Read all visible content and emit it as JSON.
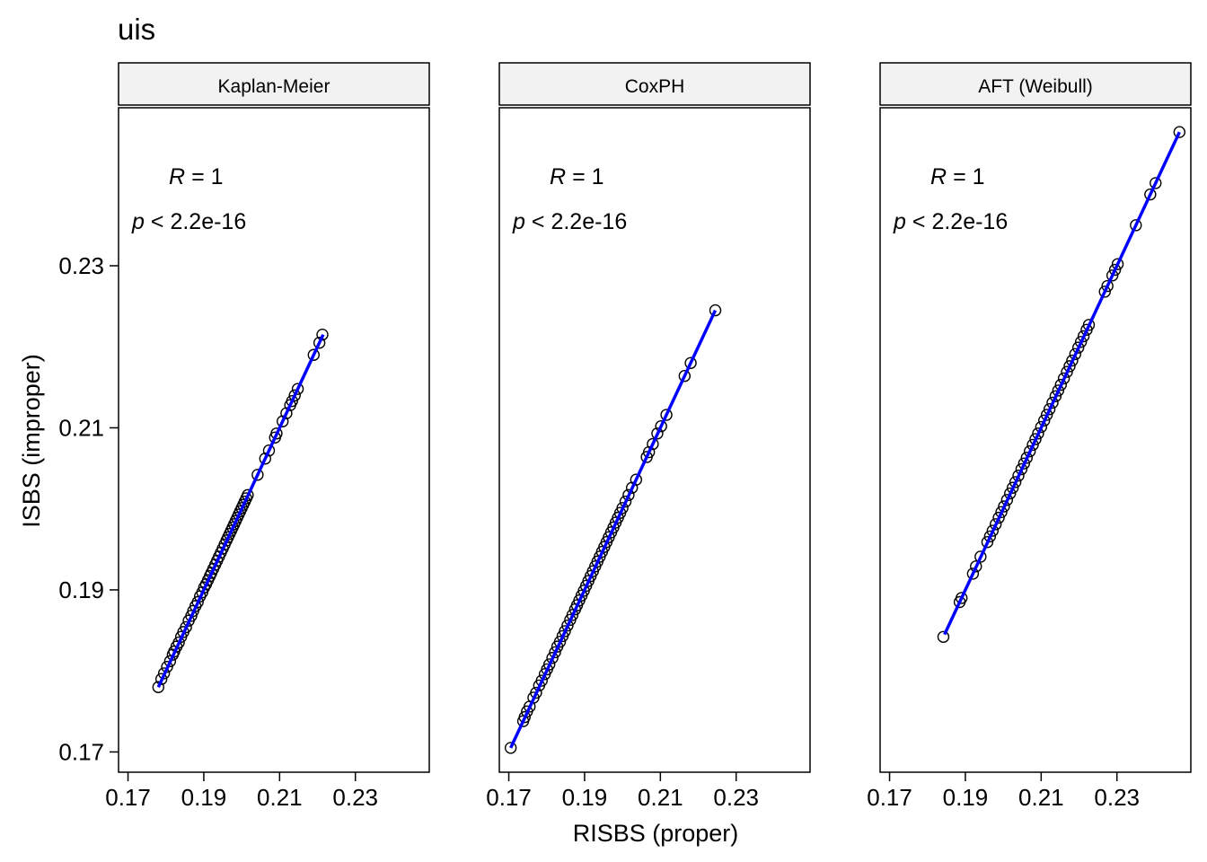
{
  "chart_data": {
    "type": "scatter",
    "title": "uis",
    "xlabel": "RISBS (proper)",
    "ylabel": "ISBS (improper)",
    "xlim": [
      0.1675,
      0.2495
    ],
    "ylim": [
      0.1675,
      0.2495
    ],
    "xticks": [
      0.17,
      0.19,
      0.21,
      0.23
    ],
    "yticks": [
      0.17,
      0.19,
      0.21,
      0.23
    ],
    "xtick_labels": [
      "0.17",
      "0.19",
      "0.21",
      "0.23"
    ],
    "ytick_labels": [
      "0.17",
      "0.19",
      "0.21",
      "0.23"
    ],
    "grid": false,
    "point_color": "#000000",
    "fit_line_color": "#0000ff",
    "strip_fill": "#f2f2f2",
    "panels": [
      {
        "strip_label": "Kaplan-Meier",
        "r_label": "R",
        "r_value": "= 1",
        "p_label": "p",
        "p_value": "< 2.2e-16",
        "fit_line": [
          [
            0.178,
            0.178
          ],
          [
            0.2215,
            0.2215
          ]
        ],
        "points": [
          [
            0.178,
            0.178
          ],
          [
            0.1788,
            0.179
          ],
          [
            0.1795,
            0.1797
          ],
          [
            0.1803,
            0.1805
          ],
          [
            0.1811,
            0.1812
          ],
          [
            0.1818,
            0.182
          ],
          [
            0.1822,
            0.1824
          ],
          [
            0.1828,
            0.183
          ],
          [
            0.1834,
            0.1835
          ],
          [
            0.184,
            0.1842
          ],
          [
            0.1846,
            0.1848
          ],
          [
            0.1853,
            0.1854
          ],
          [
            0.186,
            0.1862
          ],
          [
            0.1867,
            0.1868
          ],
          [
            0.1872,
            0.1874
          ],
          [
            0.1878,
            0.188
          ],
          [
            0.1884,
            0.1885
          ],
          [
            0.189,
            0.1892
          ],
          [
            0.1896,
            0.1897
          ],
          [
            0.1901,
            0.1903
          ],
          [
            0.1906,
            0.1907
          ],
          [
            0.1911,
            0.1912
          ],
          [
            0.1916,
            0.1917
          ],
          [
            0.192,
            0.1921
          ],
          [
            0.1925,
            0.1926
          ],
          [
            0.193,
            0.1931
          ],
          [
            0.1935,
            0.1936
          ],
          [
            0.194,
            0.1941
          ],
          [
            0.1945,
            0.1946
          ],
          [
            0.195,
            0.1951
          ],
          [
            0.1955,
            0.1956
          ],
          [
            0.196,
            0.1961
          ],
          [
            0.1964,
            0.1965
          ],
          [
            0.1968,
            0.1969
          ],
          [
            0.1972,
            0.1973
          ],
          [
            0.1976,
            0.1977
          ],
          [
            0.198,
            0.1981
          ],
          [
            0.1984,
            0.1985
          ],
          [
            0.1988,
            0.1989
          ],
          [
            0.1992,
            0.1993
          ],
          [
            0.1996,
            0.1997
          ],
          [
            0.2,
            0.2001
          ],
          [
            0.2004,
            0.2005
          ],
          [
            0.2008,
            0.2009
          ],
          [
            0.2012,
            0.2013
          ],
          [
            0.2016,
            0.2017
          ],
          [
            0.2042,
            0.2042
          ],
          [
            0.2062,
            0.2062
          ],
          [
            0.2072,
            0.2072
          ],
          [
            0.2088,
            0.2088
          ],
          [
            0.2092,
            0.2093
          ],
          [
            0.2108,
            0.2108
          ],
          [
            0.2118,
            0.2118
          ],
          [
            0.2128,
            0.2128
          ],
          [
            0.2133,
            0.2133
          ],
          [
            0.214,
            0.214
          ],
          [
            0.2148,
            0.2148
          ],
          [
            0.219,
            0.219
          ],
          [
            0.2205,
            0.2205
          ],
          [
            0.2213,
            0.2215
          ]
        ]
      },
      {
        "strip_label": "CoxPH",
        "r_label": "R",
        "r_value": "= 1",
        "p_label": "p",
        "p_value": "< 2.2e-16",
        "fit_line": [
          [
            0.1705,
            0.1705
          ],
          [
            0.2245,
            0.2245
          ]
        ],
        "points": [
          [
            0.1705,
            0.1705
          ],
          [
            0.1738,
            0.1738
          ],
          [
            0.1742,
            0.1743
          ],
          [
            0.1748,
            0.175
          ],
          [
            0.1755,
            0.1756
          ],
          [
            0.1765,
            0.1767
          ],
          [
            0.1772,
            0.1773
          ],
          [
            0.178,
            0.1782
          ],
          [
            0.1787,
            0.1788
          ],
          [
            0.1795,
            0.1796
          ],
          [
            0.1801,
            0.1802
          ],
          [
            0.1807,
            0.1808
          ],
          [
            0.1815,
            0.1816
          ],
          [
            0.1822,
            0.1823
          ],
          [
            0.1828,
            0.183
          ],
          [
            0.1835,
            0.1836
          ],
          [
            0.1842,
            0.1843
          ],
          [
            0.1848,
            0.1849
          ],
          [
            0.1855,
            0.1856
          ],
          [
            0.1862,
            0.1863
          ],
          [
            0.1868,
            0.1869
          ],
          [
            0.1875,
            0.1876
          ],
          [
            0.188,
            0.1881
          ],
          [
            0.1886,
            0.1887
          ],
          [
            0.1892,
            0.1893
          ],
          [
            0.1898,
            0.1899
          ],
          [
            0.1904,
            0.1905
          ],
          [
            0.191,
            0.1911
          ],
          [
            0.1916,
            0.1917
          ],
          [
            0.1922,
            0.1923
          ],
          [
            0.1928,
            0.1929
          ],
          [
            0.1934,
            0.1935
          ],
          [
            0.194,
            0.1941
          ],
          [
            0.1946,
            0.1947
          ],
          [
            0.1952,
            0.1953
          ],
          [
            0.1958,
            0.1959
          ],
          [
            0.1964,
            0.1965
          ],
          [
            0.197,
            0.1971
          ],
          [
            0.1976,
            0.1977
          ],
          [
            0.1982,
            0.1983
          ],
          [
            0.1988,
            0.1989
          ],
          [
            0.1994,
            0.1995
          ],
          [
            0.2,
            0.2001
          ],
          [
            0.2008,
            0.2009
          ],
          [
            0.2016,
            0.2017
          ],
          [
            0.2025,
            0.2026
          ],
          [
            0.2036,
            0.2036
          ],
          [
            0.2064,
            0.2064
          ],
          [
            0.207,
            0.207
          ],
          [
            0.208,
            0.208
          ],
          [
            0.2092,
            0.2093
          ],
          [
            0.2102,
            0.2102
          ],
          [
            0.2116,
            0.2116
          ],
          [
            0.2164,
            0.2164
          ],
          [
            0.218,
            0.218
          ],
          [
            0.2245,
            0.2245
          ]
        ]
      },
      {
        "strip_label": "AFT (Weibull)",
        "r_label": "R",
        "r_value": "= 1",
        "p_label": "p",
        "p_value": "< 2.2e-16",
        "fit_line": [
          [
            0.1845,
            0.1845
          ],
          [
            0.2465,
            0.2465
          ]
        ],
        "points": [
          [
            0.1842,
            0.1842
          ],
          [
            0.1885,
            0.1885
          ],
          [
            0.189,
            0.189
          ],
          [
            0.192,
            0.192
          ],
          [
            0.1928,
            0.1929
          ],
          [
            0.194,
            0.1941
          ],
          [
            0.1958,
            0.1959
          ],
          [
            0.1965,
            0.1966
          ],
          [
            0.1972,
            0.1973
          ],
          [
            0.198,
            0.1981
          ],
          [
            0.1988,
            0.1989
          ],
          [
            0.1995,
            0.1996
          ],
          [
            0.2002,
            0.2003
          ],
          [
            0.201,
            0.2011
          ],
          [
            0.2018,
            0.2019
          ],
          [
            0.2025,
            0.2026
          ],
          [
            0.2032,
            0.2033
          ],
          [
            0.204,
            0.2041
          ],
          [
            0.2048,
            0.2049
          ],
          [
            0.2055,
            0.2056
          ],
          [
            0.2062,
            0.2063
          ],
          [
            0.207,
            0.2071
          ],
          [
            0.2078,
            0.2079
          ],
          [
            0.2085,
            0.2086
          ],
          [
            0.2092,
            0.2093
          ],
          [
            0.21,
            0.2101
          ],
          [
            0.2108,
            0.2109
          ],
          [
            0.2115,
            0.2116
          ],
          [
            0.2122,
            0.2123
          ],
          [
            0.213,
            0.2131
          ],
          [
            0.2138,
            0.2139
          ],
          [
            0.2145,
            0.2146
          ],
          [
            0.2152,
            0.2153
          ],
          [
            0.216,
            0.2161
          ],
          [
            0.2168,
            0.2169
          ],
          [
            0.2175,
            0.2176
          ],
          [
            0.2182,
            0.2183
          ],
          [
            0.219,
            0.2191
          ],
          [
            0.2198,
            0.2199
          ],
          [
            0.2205,
            0.2206
          ],
          [
            0.2212,
            0.2213
          ],
          [
            0.222,
            0.2221
          ],
          [
            0.2226,
            0.2227
          ],
          [
            0.2268,
            0.2268
          ],
          [
            0.2275,
            0.2275
          ],
          [
            0.2288,
            0.2288
          ],
          [
            0.2295,
            0.2295
          ],
          [
            0.2302,
            0.2302
          ],
          [
            0.235,
            0.235
          ],
          [
            0.2388,
            0.2388
          ],
          [
            0.2402,
            0.2402
          ],
          [
            0.2465,
            0.2465
          ]
        ]
      }
    ]
  }
}
